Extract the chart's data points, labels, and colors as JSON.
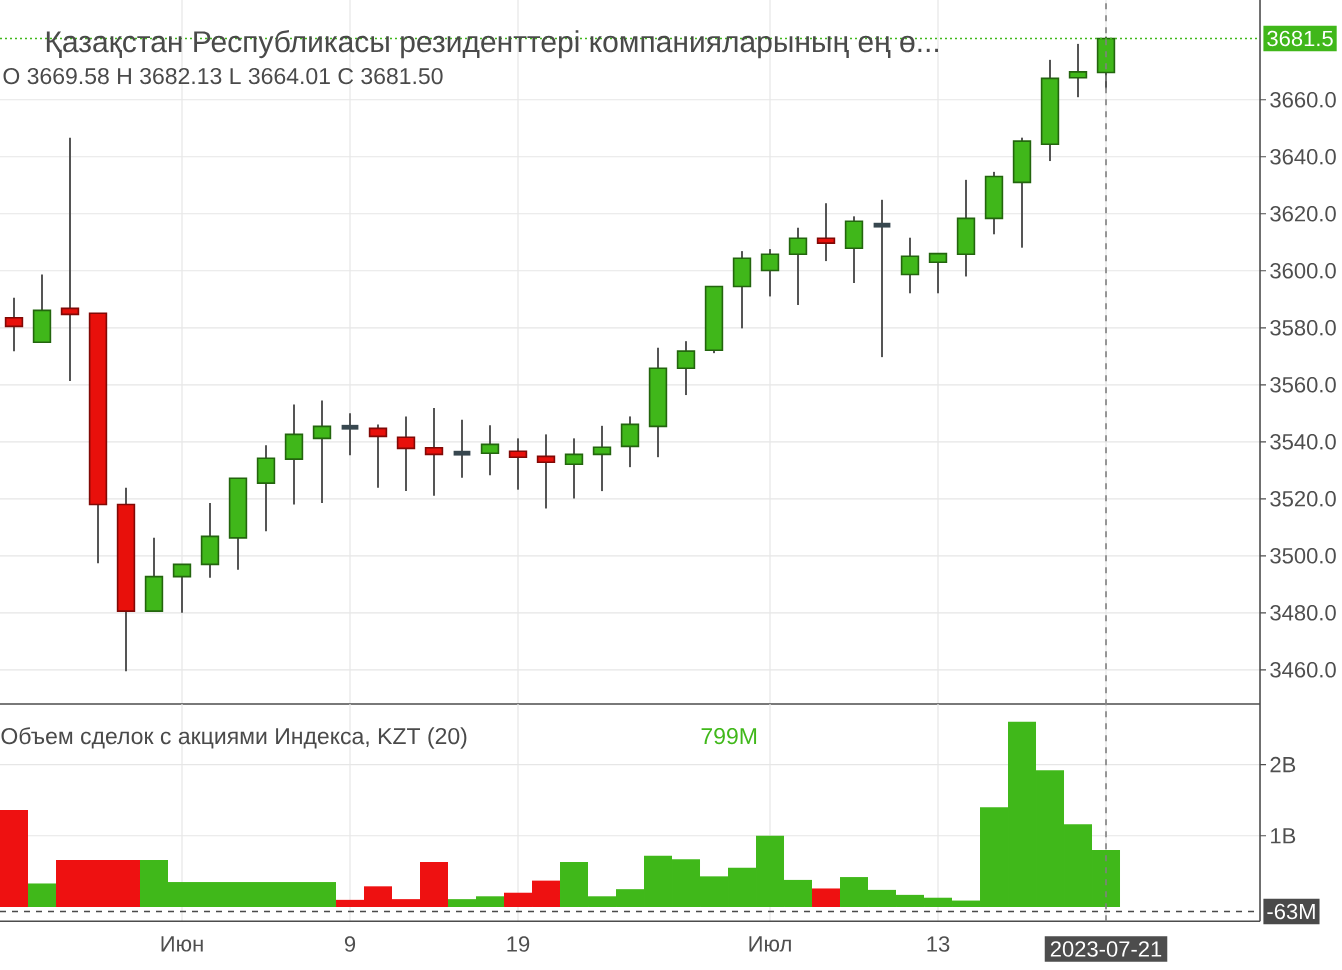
{
  "chart_data": [
    {
      "type": "candlestick",
      "title": "Қазақстан Республикасы резиденттері компанияларының ең ө...",
      "subtitle": "O 3669.58 H 3682.13 L 3664.01 C 3681.50",
      "categories": [
        null,
        null,
        null,
        null,
        null,
        null,
        null,
        null,
        null,
        null,
        null,
        null,
        null,
        null,
        null,
        null,
        null,
        null,
        null,
        null,
        null,
        null,
        null,
        null,
        null,
        null,
        null,
        null,
        null,
        null,
        null,
        null,
        null,
        null,
        null,
        null,
        null,
        null,
        null,
        null,
        null,
        null,
        null,
        null,
        null
      ],
      "ohlc": [
        [
          3583.5,
          3590.5,
          3571.8,
          3580.5
        ],
        [
          3574.9,
          3598.7,
          3574.9,
          3586.1
        ],
        [
          3586.8,
          3646.7,
          3561.3,
          3584.7
        ],
        [
          3585.1,
          3585.1,
          3497.4,
          3518.0
        ],
        [
          3518.0,
          3523.9,
          3459.5,
          3480.6
        ],
        [
          3480.6,
          3506.3,
          3480.6,
          3492.7
        ],
        [
          3492.7,
          3497.0,
          3480.0,
          3497.0
        ],
        [
          3497.0,
          3518.5,
          3492.3,
          3506.8
        ],
        [
          3506.3,
          3527.2,
          3495.1,
          3527.2
        ],
        [
          3525.5,
          3538.8,
          3508.6,
          3534.2
        ],
        [
          3533.9,
          3553.1,
          3518.0,
          3542.6
        ],
        [
          3541.2,
          3554.5,
          3518.5,
          3545.4
        ],
        [
          3545.1,
          3550.0,
          3535.3,
          3545.1
        ],
        [
          3544.7,
          3546.1,
          3523.9,
          3541.9
        ],
        [
          3541.6,
          3548.9,
          3522.7,
          3537.7
        ],
        [
          3537.9,
          3551.9,
          3521.1,
          3535.6
        ],
        [
          3536.0,
          3547.7,
          3527.4,
          3536.0
        ],
        [
          3536.0,
          3545.8,
          3528.3,
          3539.1
        ],
        [
          3536.7,
          3541.2,
          3523.2,
          3534.6
        ],
        [
          3534.9,
          3542.6,
          3516.6,
          3532.8
        ],
        [
          3532.1,
          3541.2,
          3520.1,
          3535.6
        ],
        [
          3535.6,
          3545.6,
          3522.7,
          3538.1
        ],
        [
          3538.4,
          3548.9,
          3531.1,
          3546.1
        ],
        [
          3545.4,
          3573.0,
          3534.6,
          3565.8
        ],
        [
          3565.8,
          3575.3,
          3556.4,
          3571.8
        ],
        [
          3572.1,
          3594.5,
          3571.1,
          3594.5
        ],
        [
          3594.5,
          3606.9,
          3579.8,
          3604.4
        ],
        [
          3600.1,
          3607.6,
          3591.0,
          3605.8
        ],
        [
          3605.8,
          3615.1,
          3588.0,
          3611.4
        ],
        [
          3611.4,
          3623.7,
          3603.4,
          3609.7
        ],
        [
          3607.9,
          3619.1,
          3595.7,
          3617.4
        ],
        [
          3616.0,
          3624.9,
          3569.7,
          3616.0
        ],
        [
          3598.7,
          3611.6,
          3592.1,
          3605.1
        ],
        [
          3603.0,
          3606.0,
          3592.1,
          3606.0
        ],
        [
          3605.8,
          3631.9,
          3598.0,
          3618.4
        ],
        [
          3618.4,
          3634.7,
          3612.8,
          3633.1
        ],
        [
          3631.0,
          3646.7,
          3608.1,
          3645.5
        ],
        [
          3644.4,
          3674.0,
          3638.5,
          3667.5
        ],
        [
          3667.7,
          3679.6,
          3660.9,
          3669.8
        ],
        [
          3669.58,
          3682.13,
          3664.01,
          3681.5
        ],
        null,
        null,
        null,
        null,
        null
      ],
      "colors": [
        "#e8100b",
        "#40b71a",
        "#e8100b",
        "#e8100b",
        "#e8100b",
        "#40b71a",
        "#40b71a",
        "#40b71a",
        "#40b71a",
        "#40b71a",
        "#40b71a",
        "#40b71a",
        "#37474f",
        "#e8100b",
        "#e8100b",
        "#e8100b",
        "#37474f",
        "#40b71a",
        "#e8100b",
        "#e8100b",
        "#40b71a",
        "#40b71a",
        "#40b71a",
        "#40b71a",
        "#40b71a",
        "#40b71a",
        "#40b71a",
        "#40b71a",
        "#40b71a",
        "#e8100b",
        "#40b71a",
        "#37474f",
        "#40b71a",
        "#40b71a",
        "#40b71a",
        "#40b71a",
        "#40b71a",
        "#40b71a",
        "#40b71a",
        "#40b71a",
        null,
        null,
        null,
        null,
        null
      ],
      "ylim": [
        3448,
        3695
      ],
      "yticks": [
        {
          "value": 3460,
          "label": "3460.0"
        },
        {
          "value": 3480,
          "label": "3480.0"
        },
        {
          "value": 3500,
          "label": "3500.0"
        },
        {
          "value": 3520,
          "label": "3520.0"
        },
        {
          "value": 3540,
          "label": "3540.0"
        },
        {
          "value": 3560,
          "label": "3560.0"
        },
        {
          "value": 3580,
          "label": "3580.0"
        },
        {
          "value": 3600,
          "label": "3600.0"
        },
        {
          "value": 3620,
          "label": "3620.0"
        },
        {
          "value": 3640,
          "label": "3640.0"
        },
        {
          "value": 3660,
          "label": "3660.0"
        }
      ],
      "grid": true,
      "tick_labels": "y",
      "ref_lines": [
        {
          "axis": "y",
          "value": 3681.5,
          "label": "3681.5",
          "color": "#40b71a",
          "line_style": "dotted"
        }
      ]
    },
    {
      "type": "bar",
      "title": "Объем сделок с акциями Индекса, KZT (20)",
      "categories": [
        null,
        null,
        null,
        null,
        null,
        null,
        "Июн",
        null,
        null,
        null,
        null,
        null,
        "9",
        null,
        null,
        null,
        null,
        null,
        "19",
        null,
        null,
        null,
        null,
        null,
        null,
        null,
        null,
        "Июл",
        null,
        null,
        null,
        null,
        null,
        "13",
        null,
        null,
        null,
        null,
        null,
        "2023-07-21",
        null,
        null,
        null,
        null,
        null
      ],
      "values": [
        1360000000,
        330000000,
        660000000,
        660000000,
        660000000,
        660000000,
        350000000,
        350000000,
        350000000,
        350000000,
        350000000,
        350000000,
        100000000,
        290000000,
        110000000,
        630000000,
        110000000,
        150000000,
        200000000,
        370000000,
        630000000,
        150000000,
        250000000,
        720000000,
        670000000,
        430000000,
        550000000,
        1000000000,
        380000000,
        260000000,
        420000000,
        240000000,
        170000000,
        130000000,
        90000000,
        1400000000,
        2600000000,
        1920000000,
        1160000000,
        799000000,
        null,
        null,
        null,
        null,
        null
      ],
      "colors": [
        "#ee1111",
        "#40b81a",
        "#ee1111",
        "#ee1111",
        "#ee1111",
        "#40b81a",
        "#40b81a",
        "#40b81a",
        "#40b81a",
        "#40b81a",
        "#40b81a",
        "#40b81a",
        "#ee1111",
        "#ee1111",
        "#ee1111",
        "#ee1111",
        "#40b81a",
        "#40b81a",
        "#ee1111",
        "#ee1111",
        "#40b81a",
        "#40b81a",
        "#40b81a",
        "#40b81a",
        "#40b81a",
        "#40b81a",
        "#40b81a",
        "#40b81a",
        "#40b81a",
        "#ee1111",
        "#40b81a",
        "#40b81a",
        "#40b81a",
        "#40b81a",
        "#40b81a",
        "#40b81a",
        "#40b81a",
        "#40b81a",
        "#40b81a",
        "#40b81a",
        null,
        null,
        null,
        null,
        null
      ],
      "ylim": [
        -200000000,
        2850000000
      ],
      "yticks": [
        {
          "value": 1000000000,
          "label": "1B"
        },
        {
          "value": 2000000000,
          "label": "2B"
        }
      ],
      "grid": true,
      "annotations": [
        "799M"
      ],
      "ref_lines": [
        {
          "axis": "y",
          "value": -63000000,
          "label": "-63M",
          "color": "#4a4a4a",
          "line_style": "dashed"
        },
        {
          "axis": "x",
          "value": "2023-07-21",
          "color": "#808080",
          "line_style": "dashed"
        }
      ]
    }
  ]
}
